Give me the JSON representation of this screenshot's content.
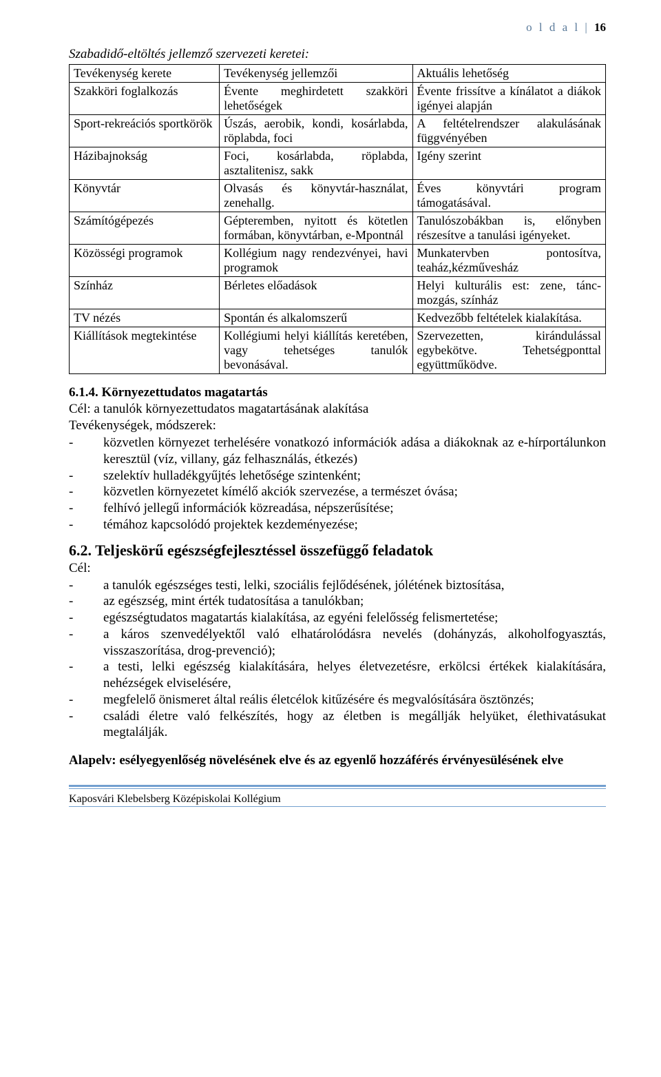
{
  "header": {
    "label": "o l d a l",
    "sep": "|",
    "page": "16"
  },
  "intro_title": "Szabadidő-eltöltés jellemző szervezeti keretei:",
  "table": {
    "rows": [
      [
        "Tevékenység kerete",
        "Tevékenység jellemzői",
        "Aktuális lehetőség"
      ],
      [
        "Szakköri foglalkozás",
        "Évente meghirdetett szakköri lehetőségek",
        "Évente frissítve a kínálatot a diákok igényei alapján"
      ],
      [
        "Sport-rekreációs sportkörök",
        "Úszás, aerobik, kondi, kosárlabda, röplabda, foci",
        "A feltételrendszer alakulásának függvényében"
      ],
      [
        "Házibajnokság",
        "Foci, kosárlabda, röplabda, asztalitenisz, sakk",
        "Igény szerint"
      ],
      [
        "Könyvtár",
        "Olvasás és könyvtár-használat, zenehallg.",
        "Éves könyvtári program támogatásával."
      ],
      [
        "Számítógépezés",
        "Gépteremben, nyitott és kötetlen formában, könyvtárban, e-Mpontnál",
        "Tanulószobákban is, előnyben részesítve a tanulási igényeket."
      ],
      [
        "Közösségi programok",
        "Kollégium nagy rendezvényei, havi programok",
        "Munkatervben pontosítva, teaház,kézművesház"
      ],
      [
        "Színház",
        "Bérletes előadások",
        "Helyi kulturális est: zene, tánc-mozgás, színház"
      ],
      [
        "TV nézés",
        "Spontán és alkalomszerű",
        "Kedvezőbb feltételek kialakítása."
      ],
      [
        "Kiállítások megtekintése",
        "Kollégiumi helyi kiállítás keretében, vagy tehetséges tanulók bevonásával.",
        "Szervezetten, kirándulással egybekötve. Tehetségponttal együttműködve."
      ]
    ]
  },
  "s614": {
    "title": "6.1.4. Környezettudatos magatartás",
    "goal": "Cél: a tanulók környezettudatos magatartásának alakítása",
    "methods_label": "Tevékenységek, módszerek:",
    "items": [
      "közvetlen környezet terhelésére vonatkozó információk adása a diákoknak az e-hírportálunkon keresztül (víz, villany, gáz felhasználás, étkezés)",
      "szelektív hulladékgyűjtés lehetősége szintenként;",
      "közvetlen környezetet kímélő akciók szervezése, a természet óvása;",
      "felhívó jellegű információk közreadása, népszerűsítése;",
      "témához kapcsolódó projektek kezdeményezése;"
    ]
  },
  "s62": {
    "title": "6.2. Teljeskörű egészségfejlesztéssel összefüggő feladatok",
    "goal_label": "Cél:",
    "items": [
      "a tanulók egészséges testi, lelki, szociális fejlődésének, jólétének biztosítása,",
      "az egészség, mint érték tudatosítása a tanulókban;",
      "egészségtudatos magatartás kialakítása, az egyéni felelősség felismertetése;",
      "a káros szenvedélyektől való elhatárolódásra nevelés (dohányzás, alkoholfogyasztás, visszaszorítása, drog-prevenció);",
      "a testi, lelki egészség kialakítására, helyes életvezetésre, erkölcsi értékek kialakítására, nehézségek elviselésére,",
      "megfelelő önismeret által reális életcélok kitűzésére és megvalósítására ösztönzés;",
      "családi életre való felkészítés, hogy az életben is megállják helyüket, élethivatásukat megtalálják."
    ]
  },
  "alapelv": "Alapelv: esélyegyenlőség növelésének elve és az egyenlő hozzáférés érvényesülésének elve",
  "footer": "Kaposvári Klebelsberg Középiskolai Kollégium"
}
